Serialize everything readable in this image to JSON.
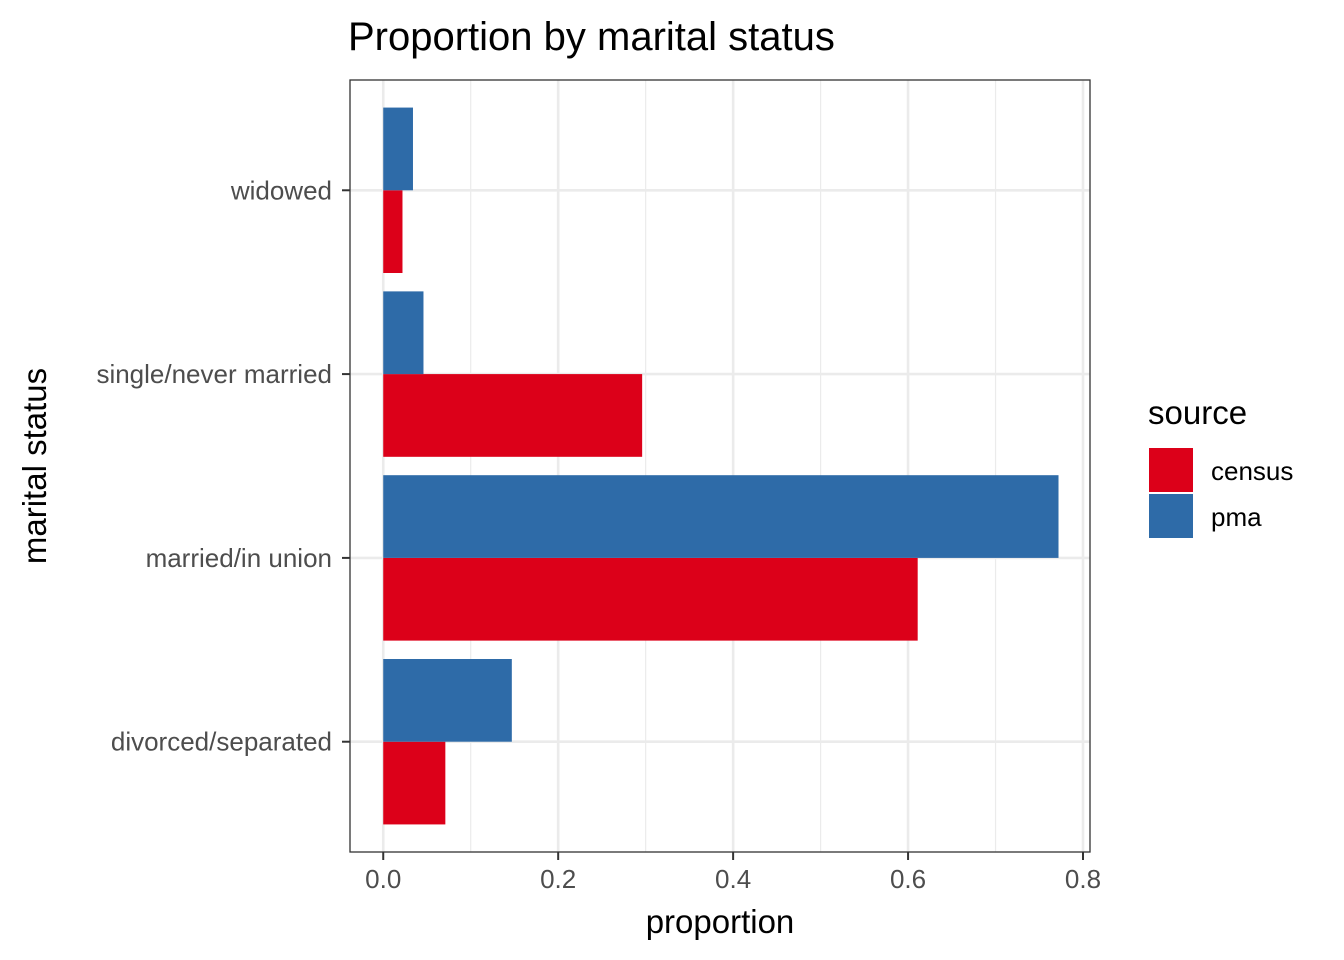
{
  "chart_data": {
    "type": "bar",
    "orientation": "horizontal",
    "title": "Proportion by marital status",
    "xlabel": "proportion",
    "ylabel": "marital status",
    "categories": [
      "divorced/separated",
      "married/in union",
      "single/never married",
      "widowed"
    ],
    "series": [
      {
        "name": "census",
        "color": "#DC0019",
        "values": [
          0.071,
          0.611,
          0.296,
          0.022
        ]
      },
      {
        "name": "pma",
        "color": "#2E6BA8",
        "values": [
          0.147,
          0.772,
          0.046,
          0.034
        ]
      }
    ],
    "xlim": [
      -0.038,
      0.808
    ],
    "xticks": [
      0.0,
      0.2,
      0.4,
      0.6,
      0.8
    ],
    "xtick_labels": [
      "0.0",
      "0.2",
      "0.4",
      "0.6",
      "0.8"
    ],
    "grid": true,
    "legend": {
      "title": "source",
      "position": "right"
    }
  }
}
